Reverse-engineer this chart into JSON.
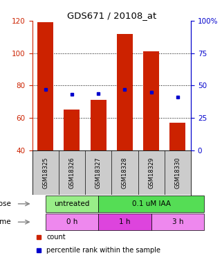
{
  "title": "GDS671 / 20108_at",
  "samples": [
    "GSM18325",
    "GSM18326",
    "GSM18327",
    "GSM18328",
    "GSM18329",
    "GSM18330"
  ],
  "counts": [
    119,
    65,
    71,
    112,
    101,
    57
  ],
  "percentiles_right": [
    47,
    43,
    44,
    47,
    45,
    41
  ],
  "ylim_left": [
    40,
    120
  ],
  "ylim_right": [
    0,
    100
  ],
  "yticks_left": [
    40,
    60,
    80,
    100,
    120
  ],
  "yticks_right": [
    0,
    25,
    50,
    75,
    100
  ],
  "yticklabels_right": [
    "0",
    "25",
    "50",
    "75",
    "100%"
  ],
  "bar_color": "#cc2200",
  "dot_color": "#0000cc",
  "bg_color": "#ffffff",
  "plot_bg": "#ffffff",
  "dose_labels": [
    {
      "label": "untreated",
      "start": 0,
      "end": 2,
      "color": "#99ee88"
    },
    {
      "label": "0.1 uM IAA",
      "start": 2,
      "end": 6,
      "color": "#55dd55"
    }
  ],
  "time_labels": [
    {
      "label": "0 h",
      "start": 0,
      "end": 2,
      "color": "#ee88ee"
    },
    {
      "label": "1 h",
      "start": 2,
      "end": 4,
      "color": "#dd44dd"
    },
    {
      "label": "3 h",
      "start": 4,
      "end": 6,
      "color": "#ee88ee"
    }
  ],
  "left_axis_color": "#cc2200",
  "right_axis_color": "#0000cc",
  "dose_row_label": "dose",
  "time_row_label": "time",
  "legend_count_label": "count",
  "legend_pct_label": "percentile rank within the sample",
  "sample_bg_color": "#cccccc"
}
